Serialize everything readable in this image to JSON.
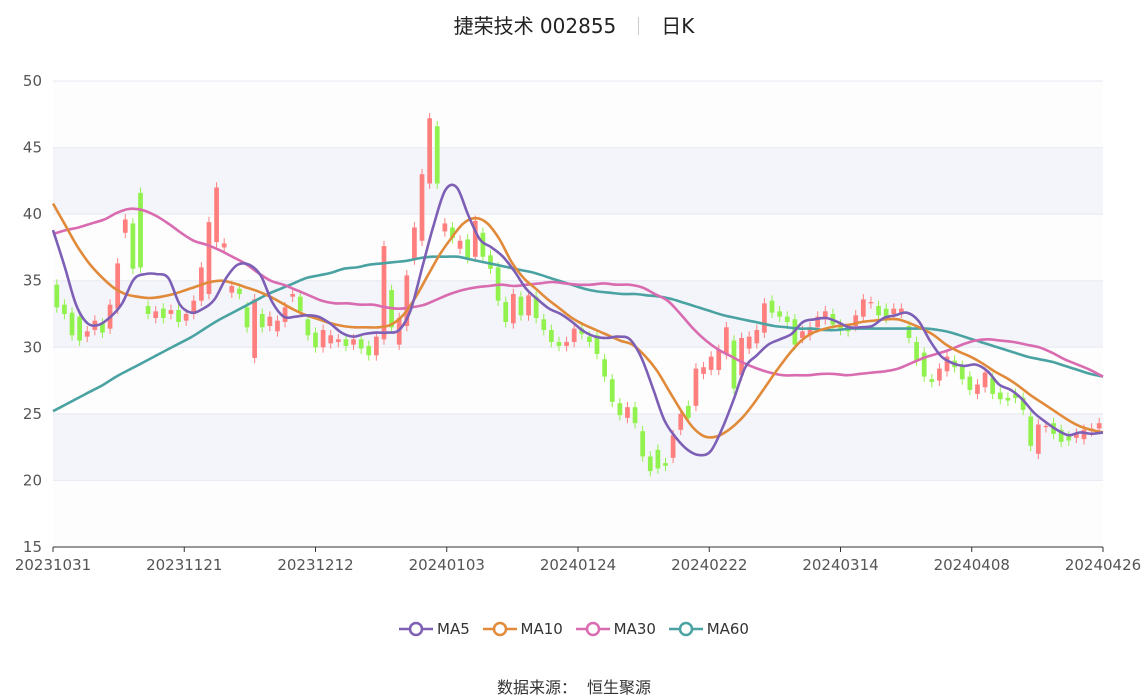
{
  "header": {
    "stock": "捷荣技术 002855",
    "period": "日K"
  },
  "source": {
    "label": "数据来源：",
    "value": "恒生聚源"
  },
  "colors": {
    "up": "#ff7f7f",
    "down": "#91f14d",
    "ma5": "#7d5fb5",
    "ma10": "#e08a3a",
    "ma30": "#d96bb0",
    "ma60": "#4aa3a2",
    "grid": "#e6e9f0",
    "band": "#f3f5fa"
  },
  "chart_data": {
    "type": "candlestick",
    "title": "捷荣技术 002855",
    "ylim": [
      15,
      50
    ],
    "yticks": [
      15,
      20,
      25,
      30,
      35,
      40,
      45,
      50
    ],
    "xtick_labels": [
      "20231031",
      "20231121",
      "20231212",
      "20240103",
      "20240124",
      "20240222",
      "20240314",
      "20240408",
      "20240426"
    ],
    "legend": [
      "MA5",
      "MA10",
      "MA30",
      "MA60"
    ],
    "candles": [
      [
        34.7,
        33.0
      ],
      [
        33.2,
        32.5
      ],
      [
        32.6,
        30.9
      ],
      [
        32.3,
        30.5
      ],
      [
        30.8,
        31.2
      ],
      [
        31.3,
        32.0
      ],
      [
        31.8,
        31.1
      ],
      [
        31.4,
        33.2
      ],
      [
        32.9,
        36.3
      ],
      [
        38.6,
        39.6
      ],
      [
        39.3,
        35.9
      ],
      [
        41.6,
        36.0
      ],
      [
        33.1,
        32.5
      ],
      [
        32.2,
        32.7
      ],
      [
        32.9,
        32.2
      ],
      [
        32.5,
        32.8
      ],
      [
        32.8,
        31.9
      ],
      [
        32.0,
        32.5
      ],
      [
        32.5,
        33.5
      ],
      [
        33.5,
        36.0
      ],
      [
        34.0,
        39.4
      ],
      [
        37.9,
        42.0
      ],
      [
        37.5,
        37.8
      ],
      [
        34.1,
        34.6
      ],
      [
        34.4,
        34.0
      ],
      [
        33.0,
        31.5
      ],
      [
        29.2,
        33.6
      ],
      [
        32.5,
        31.5
      ],
      [
        31.6,
        32.3
      ],
      [
        31.2,
        32.0
      ],
      [
        31.9,
        33.0
      ],
      [
        33.8,
        34.0
      ],
      [
        33.8,
        32.7
      ],
      [
        32.1,
        30.9
      ],
      [
        31.1,
        30.0
      ],
      [
        30.0,
        31.3
      ],
      [
        30.3,
        30.9
      ],
      [
        30.4,
        30.6
      ],
      [
        30.6,
        30.1
      ],
      [
        30.2,
        30.6
      ],
      [
        30.6,
        29.9
      ],
      [
        30.1,
        29.4
      ],
      [
        29.4,
        30.8
      ],
      [
        30.6,
        37.6
      ],
      [
        34.3,
        31.5
      ],
      [
        30.2,
        32.2
      ],
      [
        31.6,
        35.4
      ],
      [
        36.6,
        39.0
      ],
      [
        38.0,
        43.0
      ],
      [
        42.3,
        47.2
      ],
      [
        46.6,
        42.3
      ],
      [
        38.7,
        39.3
      ],
      [
        39.0,
        38.2
      ],
      [
        37.4,
        38.0
      ],
      [
        38.1,
        36.7
      ],
      [
        36.8,
        39.5
      ],
      [
        38.6,
        36.8
      ],
      [
        36.9,
        35.9
      ],
      [
        36.0,
        33.5
      ],
      [
        33.4,
        31.9
      ],
      [
        31.8,
        34.0
      ],
      [
        33.8,
        32.4
      ],
      [
        32.4,
        33.9
      ],
      [
        33.8,
        32.2
      ],
      [
        32.1,
        31.3
      ],
      [
        31.3,
        30.4
      ],
      [
        30.4,
        30.1
      ],
      [
        30.1,
        30.4
      ],
      [
        30.4,
        31.4
      ],
      [
        31.4,
        31.0
      ],
      [
        30.8,
        30.4
      ],
      [
        30.9,
        29.5
      ],
      [
        29.1,
        27.8
      ],
      [
        27.6,
        25.9
      ],
      [
        25.8,
        24.9
      ],
      [
        24.7,
        25.5
      ],
      [
        25.5,
        24.3
      ],
      [
        23.7,
        21.8
      ],
      [
        21.8,
        20.7
      ],
      [
        22.3,
        20.9
      ],
      [
        21.3,
        21.1
      ],
      [
        21.7,
        23.4
      ],
      [
        23.8,
        25.0
      ],
      [
        25.6,
        24.7
      ],
      [
        25.6,
        28.4
      ],
      [
        28.0,
        28.5
      ],
      [
        28.3,
        29.3
      ],
      [
        28.3,
        29.8
      ],
      [
        29.5,
        31.5
      ],
      [
        30.5,
        26.9
      ],
      [
        27.9,
        30.7
      ],
      [
        29.9,
        30.8
      ],
      [
        30.3,
        31.3
      ],
      [
        31.1,
        33.3
      ],
      [
        33.5,
        32.6
      ],
      [
        32.7,
        32.3
      ],
      [
        32.3,
        31.9
      ],
      [
        32.1,
        30.2
      ],
      [
        30.7,
        31.2
      ],
      [
        30.9,
        31.5
      ],
      [
        31.5,
        32.3
      ],
      [
        32.1,
        32.7
      ],
      [
        32.5,
        31.7
      ],
      [
        31.7,
        31.3
      ],
      [
        31.3,
        31.2
      ],
      [
        31.6,
        32.4
      ],
      [
        32.3,
        33.6
      ],
      [
        33.3,
        33.4
      ],
      [
        33.1,
        32.4
      ],
      [
        32.9,
        32.2
      ],
      [
        32.5,
        32.9
      ],
      [
        32.6,
        32.9
      ],
      [
        31.6,
        30.7
      ],
      [
        30.4,
        29.0
      ],
      [
        29.6,
        27.8
      ],
      [
        27.6,
        27.4
      ],
      [
        27.5,
        28.4
      ],
      [
        28.2,
        29.3
      ],
      [
        29.0,
        28.5
      ],
      [
        28.6,
        27.6
      ],
      [
        27.8,
        26.8
      ],
      [
        26.5,
        27.2
      ],
      [
        27.0,
        28.1
      ],
      [
        27.7,
        26.5
      ],
      [
        26.6,
        26.1
      ],
      [
        26.2,
        26.0
      ],
      [
        26.5,
        26.2
      ],
      [
        26.2,
        25.3
      ],
      [
        24.8,
        22.6
      ],
      [
        22.0,
        24.2
      ],
      [
        24.0,
        24.1
      ],
      [
        24.3,
        23.5
      ],
      [
        23.8,
        22.9
      ],
      [
        23.3,
        23.0
      ],
      [
        23.2,
        23.5
      ],
      [
        23.1,
        23.8
      ],
      [
        23.7,
        23.9
      ],
      [
        23.9,
        24.3
      ]
    ],
    "ma5": [
      38.8,
      36.1,
      33.2,
      31.8,
      31.7,
      32.3,
      33.3,
      35.1,
      35.5,
      35.5,
      35.2,
      33.2,
      32.6,
      32.9,
      33.6,
      35.2,
      36.2,
      36.2,
      35.4,
      33.4,
      32.3,
      32.3,
      32.4,
      32.3,
      31.8,
      31.1,
      30.8,
      31.0,
      31.1,
      31.1,
      31.3,
      32.8,
      36.0,
      39.2,
      41.8,
      42.0,
      39.9,
      38.1,
      37.5,
      36.8,
      35.7,
      34.4,
      33.6,
      32.9,
      32.5,
      31.9,
      31.2,
      30.8,
      30.7,
      30.8,
      30.6,
      29.2,
      26.9,
      24.5,
      23.2,
      22.3,
      21.9,
      22.2,
      23.9,
      26.1,
      28.5,
      29.4,
      30.2,
      30.6,
      31.0,
      31.9,
      32.1,
      32.2,
      31.9,
      31.5,
      31.5,
      31.6,
      32.2,
      32.4,
      32.6,
      32.0,
      30.5,
      29.3,
      28.8,
      28.6,
      28.7,
      28.2,
      27.2,
      26.8,
      26.1,
      25.1,
      24.4,
      23.8,
      23.4,
      23.6,
      23.5,
      23.6
    ],
    "ma10": [
      40.8,
      39.2,
      37.6,
      36.3,
      35.3,
      34.5,
      34.0,
      33.8,
      33.7,
      33.8,
      34.0,
      34.3,
      34.6,
      34.9,
      35.0,
      34.8,
      34.5,
      34.2,
      33.8,
      33.3,
      32.8,
      32.4,
      32.1,
      31.8,
      31.6,
      31.5,
      31.5,
      31.5,
      31.7,
      32.4,
      33.7,
      35.3,
      36.9,
      38.2,
      39.3,
      39.7,
      39.3,
      38.1,
      36.4,
      35.2,
      34.4,
      33.6,
      32.9,
      32.2,
      31.7,
      31.3,
      30.9,
      30.5,
      30.2,
      29.4,
      28.3,
      26.8,
      25.3,
      24.0,
      23.3,
      23.3,
      23.8,
      24.6,
      25.7,
      27.0,
      28.3,
      29.5,
      30.5,
      31.1,
      31.4,
      31.6,
      31.7,
      31.9,
      32.0,
      32.1,
      32.1,
      31.8,
      31.4,
      30.9,
      30.2,
      29.7,
      29.3,
      28.8,
      28.2,
      27.7,
      27.1,
      26.4,
      25.8,
      25.2,
      24.6,
      24.1,
      23.8,
      23.6
    ],
    "ma30": [
      38.5,
      38.8,
      39.0,
      39.3,
      39.6,
      40.1,
      40.4,
      40.3,
      39.9,
      39.3,
      38.6,
      38.0,
      37.7,
      37.3,
      36.8,
      36.3,
      35.6,
      35.0,
      34.7,
      34.3,
      33.9,
      33.5,
      33.3,
      33.3,
      33.2,
      33.2,
      33.0,
      32.9,
      33.0,
      33.2,
      33.6,
      34.0,
      34.3,
      34.5,
      34.6,
      34.7,
      34.6,
      34.7,
      34.8,
      34.9,
      34.8,
      34.7,
      34.7,
      34.8,
      34.7,
      34.7,
      34.5,
      34.0,
      33.5,
      32.5,
      31.4,
      30.5,
      29.8,
      29.3,
      28.8,
      28.4,
      28.1,
      27.9,
      27.9,
      27.9,
      28.0,
      28.0,
      27.9,
      28.0,
      28.1,
      28.2,
      28.4,
      28.8,
      29.2,
      29.5,
      29.8,
      30.2,
      30.5,
      30.6,
      30.5,
      30.4,
      30.2,
      30.0,
      29.6,
      29.1,
      28.7,
      28.3,
      27.8
    ],
    "ma60": [
      25.2,
      25.7,
      26.2,
      26.7,
      27.2,
      27.8,
      28.3,
      28.8,
      29.3,
      29.8,
      30.3,
      30.8,
      31.4,
      32.0,
      32.5,
      33.0,
      33.5,
      34.0,
      34.4,
      34.8,
      35.2,
      35.4,
      35.6,
      35.9,
      36.0,
      36.2,
      36.3,
      36.4,
      36.5,
      36.7,
      36.8,
      36.8,
      36.8,
      36.6,
      36.4,
      36.2,
      36.0,
      35.8,
      35.6,
      35.3,
      35.0,
      34.7,
      34.4,
      34.2,
      34.1,
      34.0,
      34.0,
      33.9,
      33.8,
      33.6,
      33.3,
      33.0,
      32.7,
      32.4,
      32.2,
      32.0,
      31.8,
      31.6,
      31.5,
      31.4,
      31.4,
      31.3,
      31.3,
      31.4,
      31.4,
      31.4,
      31.4,
      31.4,
      31.4,
      31.4,
      31.3,
      31.1,
      30.8,
      30.5,
      30.2,
      29.9,
      29.6,
      29.3,
      29.1,
      28.9,
      28.6,
      28.3,
      28.0,
      27.8
    ]
  }
}
